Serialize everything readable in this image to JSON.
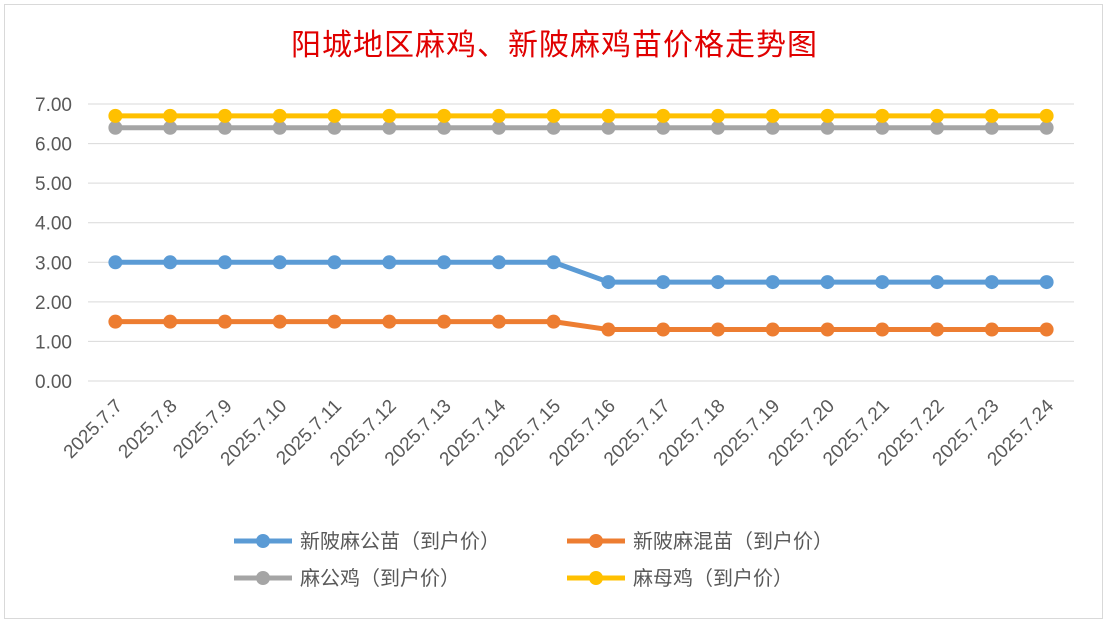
{
  "chart_data": {
    "type": "line",
    "title": "阳城地区麻鸡、新陂麻鸡苗价格走势图",
    "xlabel": "",
    "ylabel": "",
    "ylim": [
      0,
      7
    ],
    "ytick_labels": [
      "0.00",
      "1.00",
      "2.00",
      "3.00",
      "4.00",
      "5.00",
      "6.00",
      "7.00"
    ],
    "grid": true,
    "legend_position": "bottom",
    "categories": [
      "2025.7.7",
      "2025.7.8",
      "2025.7.9",
      "2025.7.10",
      "2025.7.11",
      "2025.7.12",
      "2025.7.13",
      "2025.7.14",
      "2025.7.15",
      "2025.7.16",
      "2025.7.17",
      "2025.7.18",
      "2025.7.19",
      "2025.7.20",
      "2025.7.21",
      "2025.7.22",
      "2025.7.23",
      "2025.7.24"
    ],
    "series": [
      {
        "name": "新陂麻公苗（到户价）",
        "color": "#5b9bd5",
        "values": [
          3.0,
          3.0,
          3.0,
          3.0,
          3.0,
          3.0,
          3.0,
          3.0,
          3.0,
          2.5,
          2.5,
          2.5,
          2.5,
          2.5,
          2.5,
          2.5,
          2.5,
          2.5
        ]
      },
      {
        "name": "新陂麻混苗（到户价）",
        "color": "#ed7d31",
        "values": [
          1.5,
          1.5,
          1.5,
          1.5,
          1.5,
          1.5,
          1.5,
          1.5,
          1.5,
          1.3,
          1.3,
          1.3,
          1.3,
          1.3,
          1.3,
          1.3,
          1.3,
          1.3
        ]
      },
      {
        "name": "麻公鸡（到户价）",
        "color": "#a5a5a5",
        "values": [
          6.4,
          6.4,
          6.4,
          6.4,
          6.4,
          6.4,
          6.4,
          6.4,
          6.4,
          6.4,
          6.4,
          6.4,
          6.4,
          6.4,
          6.4,
          6.4,
          6.4,
          6.4
        ]
      },
      {
        "name": "麻母鸡（到户价）",
        "color": "#ffc000",
        "values": [
          6.7,
          6.7,
          6.7,
          6.7,
          6.7,
          6.7,
          6.7,
          6.7,
          6.7,
          6.7,
          6.7,
          6.7,
          6.7,
          6.7,
          6.7,
          6.7,
          6.7,
          6.7
        ]
      }
    ]
  }
}
